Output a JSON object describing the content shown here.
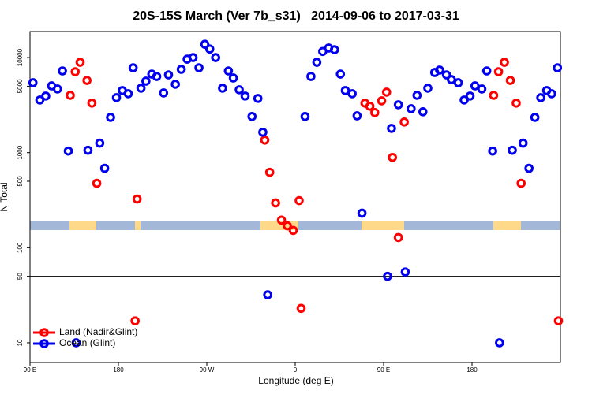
{
  "chart_data": {
    "type": "scatter",
    "title": "20S-15S March (Ver 7b_s31)   2014-09-06 to 2017-03-31",
    "x_label": "Longitude (deg E)",
    "y_label": "N Total",
    "log_y": true,
    "legend": "lower left",
    "xlim": [
      90,
      630
    ],
    "ylim": [
      6.2,
      18800
    ],
    "xticks": [
      {
        "value": 90,
        "label": "90 E"
      },
      180,
      {
        "value": 270,
        "label": "90 W"
      },
      {
        "value": 360,
        "label": "0"
      },
      {
        "value": 450,
        "label": "90 E"
      },
      {
        "value": 540,
        "label": "180"
      }
    ],
    "yticks": [
      10,
      50,
      100,
      500,
      1000,
      5000,
      10000
    ],
    "hline": 50,
    "series": [
      {
        "name": "Land (Nadir&Glint)",
        "color": "#ff0000",
        "x": [
          131,
          136,
          141,
          148,
          153,
          158,
          199,
          197,
          329,
          334,
          340,
          346,
          352,
          358,
          364,
          366,
          431,
          436,
          441,
          448,
          453,
          459,
          465,
          471,
          562,
          567,
          573,
          579,
          585,
          590,
          628
        ],
        "values": [
          4010,
          7100,
          8920,
          5750,
          3320,
          476,
          325,
          17,
          1355,
          621,
          296,
          195,
          170,
          152,
          313,
          23,
          3320,
          3080,
          2640,
          3510,
          4330,
          891,
          128,
          2100,
          4010,
          7100,
          8920,
          5750,
          3320,
          476,
          17
        ]
      },
      {
        "name": "Ocean (Glint)",
        "color": "#0000ee",
        "x": [
          93,
          100,
          106,
          112,
          118,
          123,
          129,
          137,
          149,
          161,
          166,
          172,
          178,
          184,
          190,
          195,
          203,
          208,
          214,
          219,
          226,
          231,
          238,
          244,
          250,
          256,
          262,
          268,
          273,
          279,
          286,
          292,
          297,
          303,
          309,
          316,
          322,
          327,
          332,
          370,
          376,
          382,
          388,
          394,
          400,
          406,
          411,
          418,
          423,
          428,
          454,
          458,
          465,
          472,
          478,
          484,
          490,
          495,
          502,
          507,
          514,
          519,
          526,
          532,
          538,
          543,
          550,
          555,
          561,
          568,
          581,
          592,
          598,
          604,
          610,
          616,
          621,
          627
        ],
        "values": [
          5440,
          3580,
          3940,
          5040,
          4670,
          7240,
          1040,
          10,
          1060,
          1260,
          684,
          2350,
          3790,
          4500,
          4170,
          7810,
          4760,
          5650,
          6700,
          6330,
          4250,
          6580,
          5240,
          7520,
          9620,
          10000,
          7810,
          13800,
          12300,
          10000,
          4760,
          7240,
          6100,
          4590,
          3940,
          2400,
          3720,
          1640,
          32,
          2400,
          6330,
          8920,
          11600,
          12600,
          12100,
          6700,
          4500,
          4170,
          2440,
          231,
          50,
          1800,
          3190,
          55.5,
          2900,
          4010,
          2690,
          4760,
          6970,
          7380,
          6580,
          5870,
          5440,
          3580,
          3940,
          5040,
          4670,
          7240,
          1040,
          10,
          1060,
          1260,
          684,
          2350,
          3790,
          4500,
          4170,
          7810
        ]
      }
    ]
  }
}
